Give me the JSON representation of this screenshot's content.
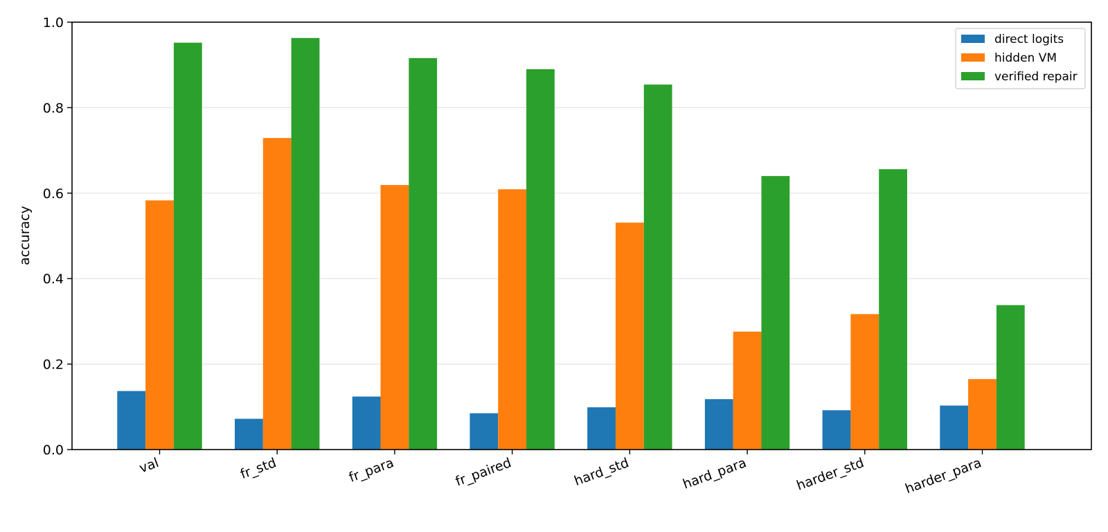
{
  "chart_data": {
    "type": "bar",
    "title": "",
    "xlabel": "",
    "ylabel": "accuracy",
    "categories": [
      "val",
      "fr_std",
      "fr_para",
      "fr_paired",
      "hard_std",
      "hard_para",
      "harder_std",
      "harder_para"
    ],
    "series": [
      {
        "name": "direct logits",
        "color": "#1f77b4",
        "values": [
          0.137,
          0.072,
          0.124,
          0.085,
          0.099,
          0.118,
          0.092,
          0.103
        ]
      },
      {
        "name": "hidden VM",
        "color": "#ff7f0e",
        "values": [
          0.583,
          0.729,
          0.619,
          0.609,
          0.531,
          0.276,
          0.317,
          0.165
        ]
      },
      {
        "name": "verified repair",
        "color": "#2ca02c",
        "values": [
          0.952,
          0.963,
          0.916,
          0.89,
          0.854,
          0.64,
          0.656,
          0.338
        ]
      }
    ],
    "ylim": [
      0.0,
      1.0
    ],
    "yticks": [
      0.0,
      0.2,
      0.4,
      0.6,
      0.8,
      1.0
    ],
    "ytick_labels": [
      "0.0",
      "0.2",
      "0.4",
      "0.6",
      "0.8",
      "1.0"
    ],
    "grid": "horizontal",
    "legend_position": "top-right"
  }
}
